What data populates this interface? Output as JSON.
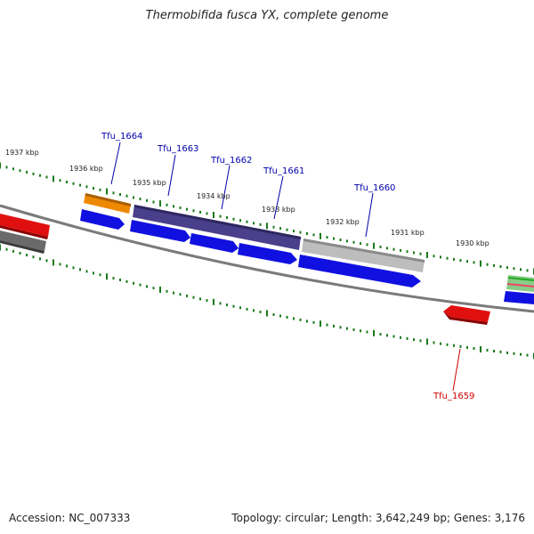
{
  "title": "Thermobifida fusca YX, complete genome",
  "accession": "Accession: NC_007333",
  "summary": "Topology: circular; Length: 3,642,249 bp; Genes: 3,176",
  "colors": {
    "backbone": "#7a7a7a",
    "tick": "#1a7a1a",
    "gene_label_forward": "#0000aa",
    "gene_label_reverse": "#cc0000",
    "cds_blue": "#1010e0",
    "orange": "#ee8800",
    "purple": "#4a3f8a",
    "grey_light": "#bdbdbd",
    "grey_dark": "#6a6a6a",
    "red": "#e01010"
  },
  "kbp_labels": [
    "1937 kbp",
    "1936 kbp",
    "1935 kbp",
    "1934 kbp",
    "1933 kbp",
    "1932 kbp",
    "1931 kbp",
    "1930 kbp"
  ],
  "gene_labels": [
    "Tfu_1664",
    "Tfu_1663",
    "Tfu_1662",
    "Tfu_1661",
    "Tfu_1660",
    "Tfu_1659"
  ]
}
